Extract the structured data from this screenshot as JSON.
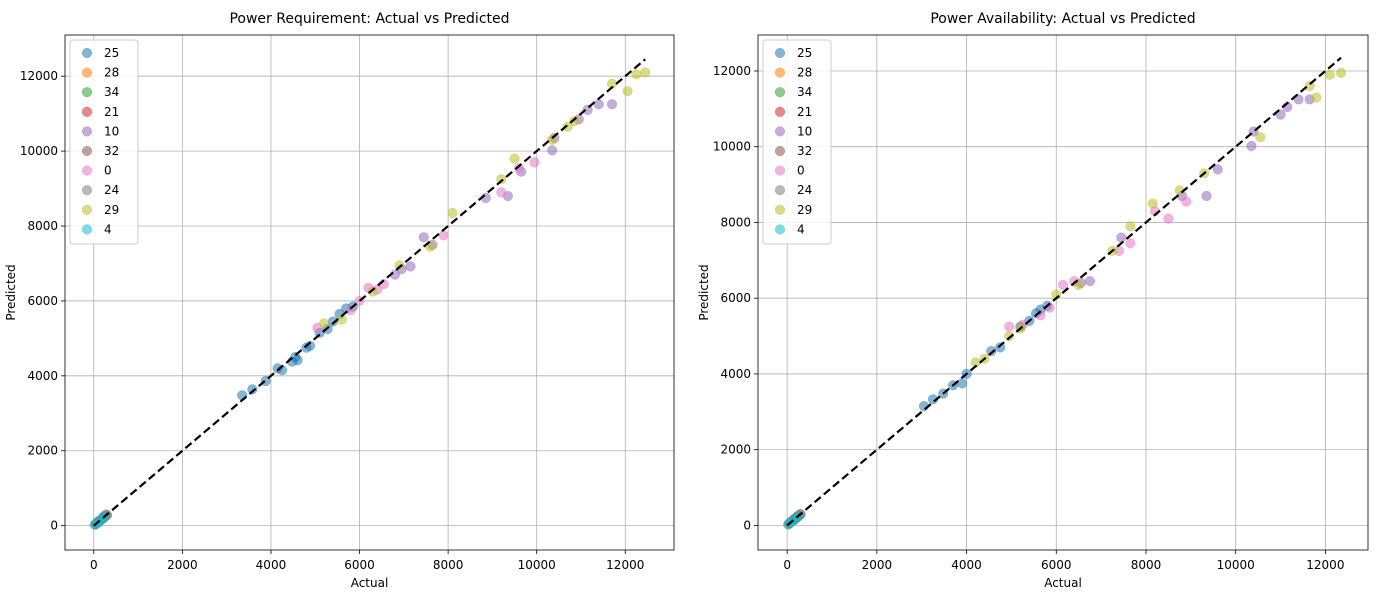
{
  "legend_entries": [
    {
      "label": "25",
      "color": "#1f77b4"
    },
    {
      "label": "28",
      "color": "#ff7f0e"
    },
    {
      "label": "34",
      "color": "#2ca02c"
    },
    {
      "label": "21",
      "color": "#d62728"
    },
    {
      "label": "10",
      "color": "#9467bd"
    },
    {
      "label": "32",
      "color": "#8c564b"
    },
    {
      "label": "0",
      "color": "#e377c2"
    },
    {
      "label": "24",
      "color": "#7f7f7f"
    },
    {
      "label": "29",
      "color": "#bcbd22"
    },
    {
      "label": "4",
      "color": "#17becf"
    }
  ],
  "chart_data": [
    {
      "type": "scatter",
      "title": "Power Requirement: Actual vs Predicted",
      "xlabel": "Actual",
      "ylabel": "Predicted",
      "xlim": [
        -650,
        13100
      ],
      "ylim": [
        -650,
        13100
      ],
      "xticks": [
        0,
        2000,
        4000,
        6000,
        8000,
        10000,
        12000
      ],
      "yticks": [
        0,
        2000,
        4000,
        6000,
        8000,
        10000,
        12000
      ],
      "grid": true,
      "legend_position": "top-left",
      "reference_line": {
        "style": "dashed",
        "color": "#000000",
        "from": [
          0,
          0
        ],
        "to": [
          12450,
          12450
        ]
      },
      "series": [
        {
          "name": "25",
          "color": "#1f77b4",
          "points": [
            [
              3350,
              3480
            ],
            [
              3580,
              3640
            ],
            [
              3880,
              3860
            ],
            [
              4150,
              4200
            ],
            [
              4250,
              4150
            ],
            [
              4480,
              4380
            ],
            [
              4550,
              4500
            ],
            [
              4600,
              4420
            ],
            [
              4800,
              4750
            ],
            [
              4880,
              4800
            ],
            [
              5100,
              5150
            ],
            [
              5280,
              5250
            ],
            [
              5400,
              5450
            ],
            [
              5550,
              5650
            ],
            [
              5700,
              5800
            ],
            [
              5850,
              5850
            ],
            [
              90,
              80
            ],
            [
              150,
              140
            ],
            [
              220,
              200
            ]
          ]
        },
        {
          "name": "28",
          "color": "#ff7f0e",
          "points": [
            [
              50,
              45
            ],
            [
              110,
              120
            ],
            [
              200,
              190
            ]
          ]
        },
        {
          "name": "34",
          "color": "#2ca02c",
          "points": [
            [
              60,
              70
            ],
            [
              160,
              150
            ],
            [
              240,
              230
            ]
          ]
        },
        {
          "name": "21",
          "color": "#d62728",
          "points": [
            [
              40,
              35
            ],
            [
              130,
              120
            ],
            [
              210,
              220
            ]
          ]
        },
        {
          "name": "10",
          "color": "#9467bd",
          "points": [
            [
              6800,
              6700
            ],
            [
              6950,
              6850
            ],
            [
              7150,
              6920
            ],
            [
              7450,
              7700
            ],
            [
              7650,
              7500
            ],
            [
              8850,
              8750
            ],
            [
              9350,
              8800
            ],
            [
              9650,
              9450
            ],
            [
              10350,
              10020
            ],
            [
              10400,
              10350
            ],
            [
              10950,
              10850
            ],
            [
              11150,
              11100
            ],
            [
              11400,
              11250
            ],
            [
              11700,
              11250
            ]
          ]
        },
        {
          "name": "32",
          "color": "#8c564b",
          "points": [
            [
              180,
              170
            ],
            [
              260,
              260
            ],
            [
              300,
              280
            ]
          ]
        },
        {
          "name": "0",
          "color": "#e377c2",
          "points": [
            [
              5050,
              5280
            ],
            [
              5800,
              5750
            ],
            [
              6000,
              6000
            ],
            [
              6200,
              6350
            ],
            [
              6400,
              6300
            ],
            [
              6550,
              6450
            ],
            [
              7900,
              7750
            ],
            [
              9200,
              8900
            ],
            [
              9600,
              9550
            ],
            [
              9950,
              9700
            ]
          ]
        },
        {
          "name": "24",
          "color": "#7f7f7f",
          "points": [
            [
              100,
              110
            ],
            [
              230,
              250
            ],
            [
              280,
              300
            ]
          ]
        },
        {
          "name": "29",
          "color": "#bcbd22",
          "points": [
            [
              5200,
              5400
            ],
            [
              5600,
              5500
            ],
            [
              6300,
              6250
            ],
            [
              6900,
              6950
            ],
            [
              7600,
              7450
            ],
            [
              8100,
              8350
            ],
            [
              9200,
              9250
            ],
            [
              9500,
              9800
            ],
            [
              10350,
              10300
            ],
            [
              10700,
              10650
            ],
            [
              10850,
              10800
            ],
            [
              11700,
              11800
            ],
            [
              12050,
              11600
            ],
            [
              12250,
              12050
            ],
            [
              12450,
              12100
            ]
          ]
        },
        {
          "name": "4",
          "color": "#17becf",
          "points": [
            [
              20,
              20
            ],
            [
              70,
              60
            ],
            [
              120,
              100
            ],
            [
              170,
              160
            ],
            [
              250,
              240
            ]
          ]
        }
      ]
    },
    {
      "type": "scatter",
      "title": "Power Availability: Actual vs Predicted",
      "xlabel": "Actual",
      "ylabel": "Predicted",
      "xlim": [
        -650,
        12950
      ],
      "ylim": [
        -650,
        12950
      ],
      "xticks": [
        0,
        2000,
        4000,
        6000,
        8000,
        10000,
        12000
      ],
      "yticks": [
        0,
        2000,
        4000,
        6000,
        8000,
        10000,
        12000
      ],
      "grid": true,
      "legend_position": "top-left",
      "reference_line": {
        "style": "dashed",
        "color": "#000000",
        "from": [
          0,
          0
        ],
        "to": [
          12350,
          12350
        ]
      },
      "series": [
        {
          "name": "25",
          "color": "#1f77b4",
          "points": [
            [
              3050,
              3150
            ],
            [
              3250,
              3330
            ],
            [
              3480,
              3480
            ],
            [
              3700,
              3700
            ],
            [
              3900,
              3750
            ],
            [
              4000,
              4000
            ],
            [
              4550,
              4600
            ],
            [
              4750,
              4700
            ],
            [
              5200,
              5250
            ],
            [
              5400,
              5400
            ],
            [
              5550,
              5600
            ],
            [
              5650,
              5700
            ],
            [
              5800,
              5800
            ],
            [
              80,
              90
            ],
            [
              160,
              150
            ],
            [
              230,
              240
            ]
          ]
        },
        {
          "name": "28",
          "color": "#ff7f0e",
          "points": [
            [
              50,
              50
            ],
            [
              120,
              110
            ],
            [
              190,
              200
            ]
          ]
        },
        {
          "name": "34",
          "color": "#2ca02c",
          "points": [
            [
              60,
              60
            ],
            [
              150,
              160
            ],
            [
              250,
              240
            ]
          ]
        },
        {
          "name": "21",
          "color": "#d62728",
          "points": [
            [
              40,
              40
            ],
            [
              130,
              130
            ],
            [
              210,
              200
            ]
          ]
        },
        {
          "name": "10",
          "color": "#9467bd",
          "points": [
            [
              6550,
              6400
            ],
            [
              6750,
              6450
            ],
            [
              7450,
              7600
            ],
            [
              8800,
              8700
            ],
            [
              9350,
              8700
            ],
            [
              9600,
              9400
            ],
            [
              10350,
              10020
            ],
            [
              10400,
              10400
            ],
            [
              11000,
              10850
            ],
            [
              11150,
              11050
            ],
            [
              11400,
              11250
            ],
            [
              11650,
              11250
            ]
          ]
        },
        {
          "name": "32",
          "color": "#8c564b",
          "points": [
            [
              170,
              170
            ],
            [
              260,
              250
            ],
            [
              300,
              290
            ]
          ]
        },
        {
          "name": "0",
          "color": "#e377c2",
          "points": [
            [
              4950,
              5250
            ],
            [
              5250,
              5300
            ],
            [
              5650,
              5550
            ],
            [
              5850,
              5750
            ],
            [
              6150,
              6350
            ],
            [
              6400,
              6450
            ],
            [
              7400,
              7250
            ],
            [
              7650,
              7450
            ],
            [
              8200,
              8300
            ],
            [
              8500,
              8100
            ],
            [
              8900,
              8550
            ]
          ]
        },
        {
          "name": "24",
          "color": "#7f7f7f",
          "points": [
            [
              110,
              110
            ],
            [
              240,
              250
            ],
            [
              290,
              300
            ]
          ]
        },
        {
          "name": "29",
          "color": "#bcbd22",
          "points": [
            [
              4200,
              4300
            ],
            [
              4400,
              4400
            ],
            [
              4950,
              5000
            ],
            [
              5200,
              5200
            ],
            [
              6000,
              6100
            ],
            [
              6500,
              6350
            ],
            [
              7250,
              7250
            ],
            [
              7650,
              7900
            ],
            [
              8150,
              8500
            ],
            [
              8750,
              8850
            ],
            [
              9300,
              9300
            ],
            [
              10550,
              10250
            ],
            [
              11650,
              11600
            ],
            [
              11800,
              11300
            ],
            [
              12100,
              11900
            ],
            [
              12350,
              11950
            ]
          ]
        },
        {
          "name": "4",
          "color": "#17becf",
          "points": [
            [
              20,
              20
            ],
            [
              60,
              70
            ],
            [
              120,
              110
            ],
            [
              180,
              170
            ],
            [
              260,
              250
            ]
          ]
        }
      ]
    }
  ]
}
